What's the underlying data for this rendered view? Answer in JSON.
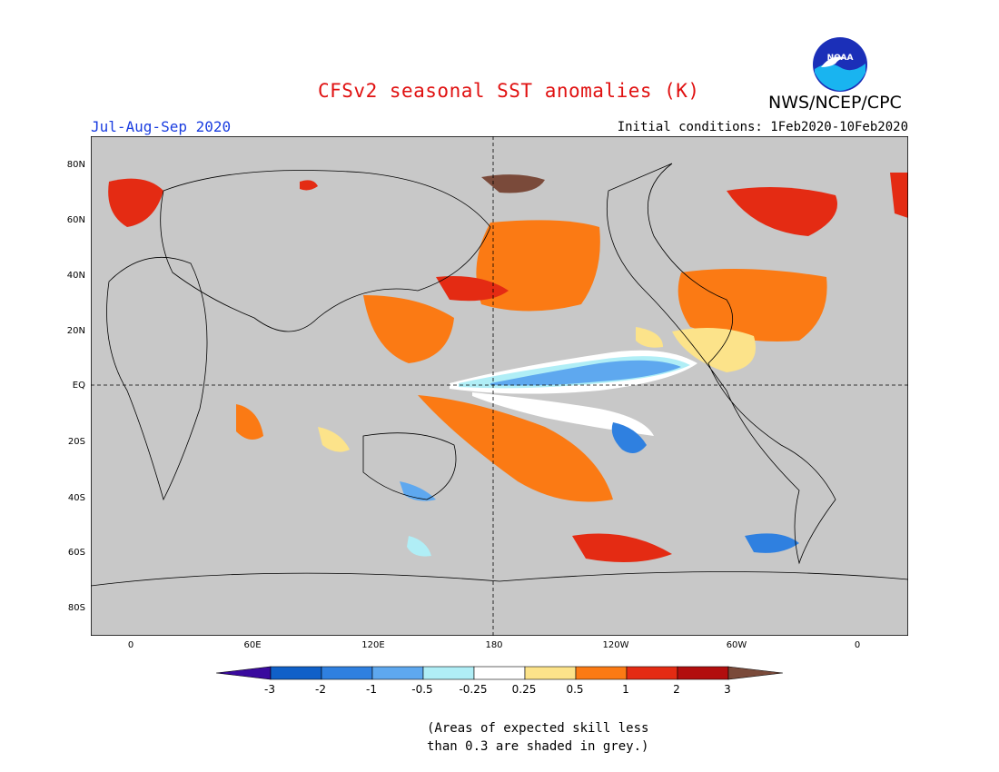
{
  "header": {
    "title": "CFSv2 seasonal SST anomalies (K)",
    "agency": "NWS/NCEP/CPC",
    "period": "Jul-Aug-Sep 2020",
    "initial_conditions": "Initial conditions: 1Feb2020-10Feb2020",
    "logo_text": "NOAA"
  },
  "map": {
    "lat_labels": [
      "80N",
      "60N",
      "40N",
      "20N",
      "EQ",
      "20S",
      "40S",
      "60S",
      "80S"
    ],
    "lon_labels": [
      "0",
      "60E",
      "120E",
      "180",
      "120W",
      "60W",
      "0"
    ],
    "land_color": "#c8c8c8",
    "ocean_background": "#c8c8c8"
  },
  "colorbar": {
    "ticks": [
      "-3",
      "-2",
      "-1",
      "-0.5",
      "-0.25",
      "0.25",
      "0.5",
      "1",
      "2",
      "3"
    ],
    "colors": [
      "#3a0a9e",
      "#1060c8",
      "#2f80e0",
      "#5ea8ef",
      "#b0eef6",
      "#ffffff",
      "#fce38a",
      "#fb7a14",
      "#e42b13",
      "#b20e0e",
      "#7a4a3a"
    ]
  },
  "note": {
    "line1": "(Areas of expected skill less",
    "line2": "than 0.3 are shaded in grey.)"
  }
}
